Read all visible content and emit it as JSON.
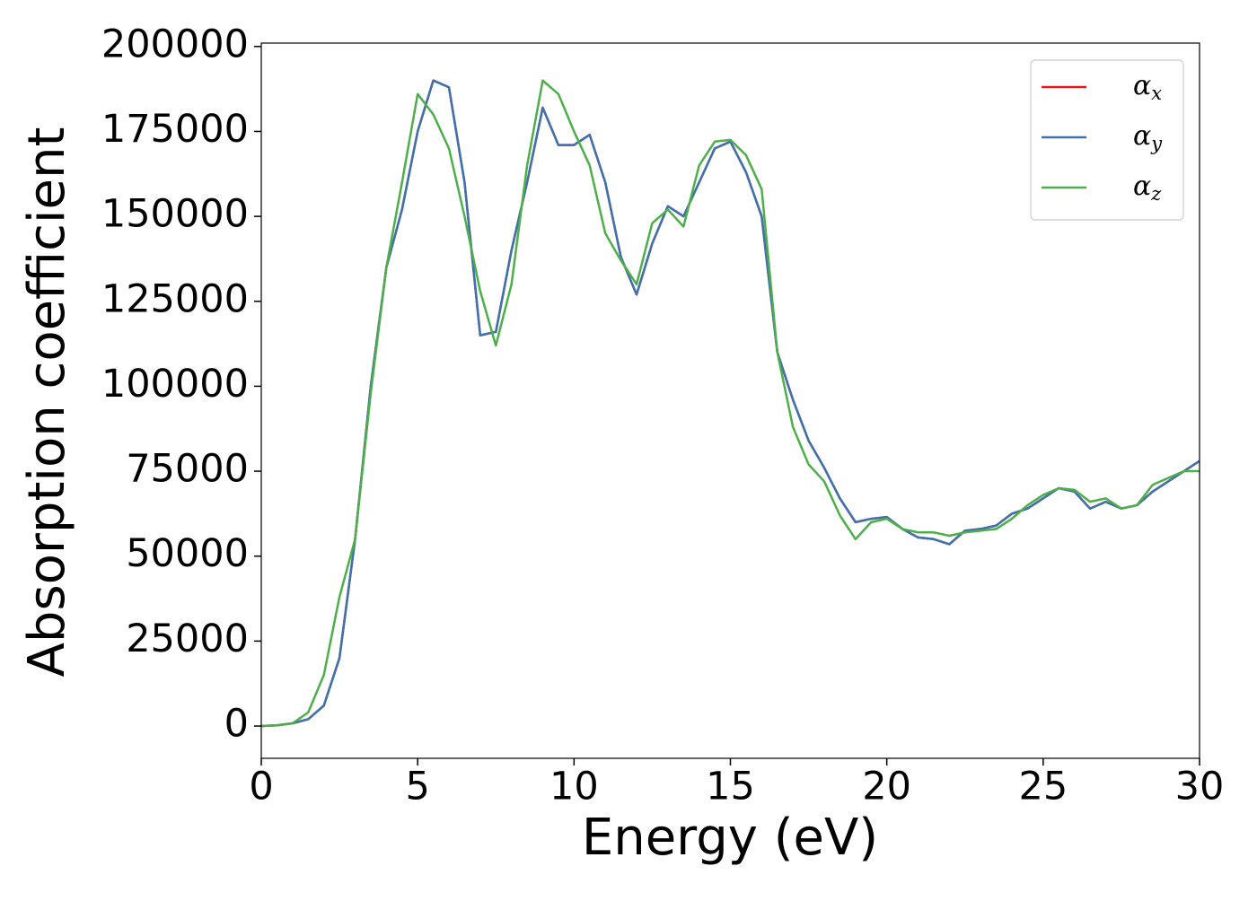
{
  "chart_data": {
    "type": "line",
    "xlabel": "Energy (eV)",
    "ylabel": "Absorption coefficient",
    "x": [
      0,
      0.5,
      1,
      1.5,
      2,
      2.5,
      3,
      3.5,
      4,
      4.5,
      5,
      5.5,
      6,
      6.5,
      7,
      7.5,
      8,
      8.5,
      9,
      9.5,
      10,
      10.5,
      11,
      11.5,
      12,
      12.5,
      13,
      13.5,
      14,
      14.5,
      15,
      15.5,
      16,
      16.5,
      17,
      17.5,
      18,
      18.5,
      19,
      19.5,
      20,
      20.5,
      21,
      21.5,
      22,
      22.5,
      23,
      23.5,
      24,
      24.5,
      25,
      25.5,
      26,
      26.5,
      27,
      27.5,
      28,
      28.5,
      29,
      29.5,
      30
    ],
    "series": [
      {
        "name": "αx",
        "color": "#e41a1c",
        "values": [
          0,
          200,
          800,
          2000,
          6000,
          20000,
          55000,
          100000,
          135000,
          152000,
          175000,
          190000,
          188000,
          160000,
          115000,
          116000,
          140000,
          160000,
          182000,
          171000,
          171000,
          174000,
          160000,
          138000,
          127000,
          142000,
          153000,
          150000,
          160000,
          170000,
          172000,
          163000,
          150000,
          110000,
          96000,
          84000,
          76000,
          67000,
          60000,
          61000,
          61500,
          58000,
          55500,
          55000,
          53500,
          57500,
          58000,
          59000,
          62500,
          64000,
          67000,
          70000,
          69000,
          64000,
          66000,
          64000,
          65000,
          69000,
          72000,
          75000,
          78000
        ]
      },
      {
        "name": "αy",
        "color": "#3b73b0",
        "values": [
          0,
          200,
          800,
          2000,
          6000,
          20000,
          55000,
          100000,
          135000,
          152000,
          175000,
          190000,
          188000,
          160000,
          115000,
          116000,
          140000,
          160000,
          182000,
          171000,
          171000,
          174000,
          160000,
          138000,
          127000,
          142000,
          153000,
          150000,
          160000,
          170000,
          172000,
          163000,
          150000,
          110000,
          96000,
          84000,
          76000,
          67000,
          60000,
          61000,
          61500,
          58000,
          55500,
          55000,
          53500,
          57500,
          58000,
          59000,
          62500,
          64000,
          67000,
          70000,
          69000,
          64000,
          66000,
          64000,
          65000,
          69000,
          72000,
          75000,
          78000
        ]
      },
      {
        "name": "αz",
        "color": "#4daf4a",
        "values": [
          0,
          200,
          800,
          4000,
          15000,
          38000,
          55000,
          98000,
          135000,
          160000,
          186000,
          180000,
          170000,
          150000,
          128000,
          112000,
          130000,
          165000,
          190000,
          186000,
          175000,
          165000,
          145000,
          137000,
          130000,
          148000,
          152000,
          147000,
          165000,
          172000,
          172500,
          168000,
          158000,
          110000,
          88000,
          77000,
          72000,
          62000,
          55000,
          60000,
          61000,
          58000,
          57000,
          57000,
          56000,
          57000,
          57500,
          58000,
          61000,
          65000,
          68000,
          70000,
          69500,
          66000,
          67000,
          64000,
          65000,
          71000,
          73000,
          75000,
          75000
        ]
      }
    ],
    "xlim": [
      0,
      30
    ],
    "xticks": [
      0,
      5,
      10,
      15,
      20,
      25,
      30
    ],
    "ylim": [
      -9500,
      201000
    ],
    "yticks": [
      0,
      25000,
      50000,
      75000,
      100000,
      125000,
      150000,
      175000,
      200000
    ],
    "legend": "upper right"
  }
}
